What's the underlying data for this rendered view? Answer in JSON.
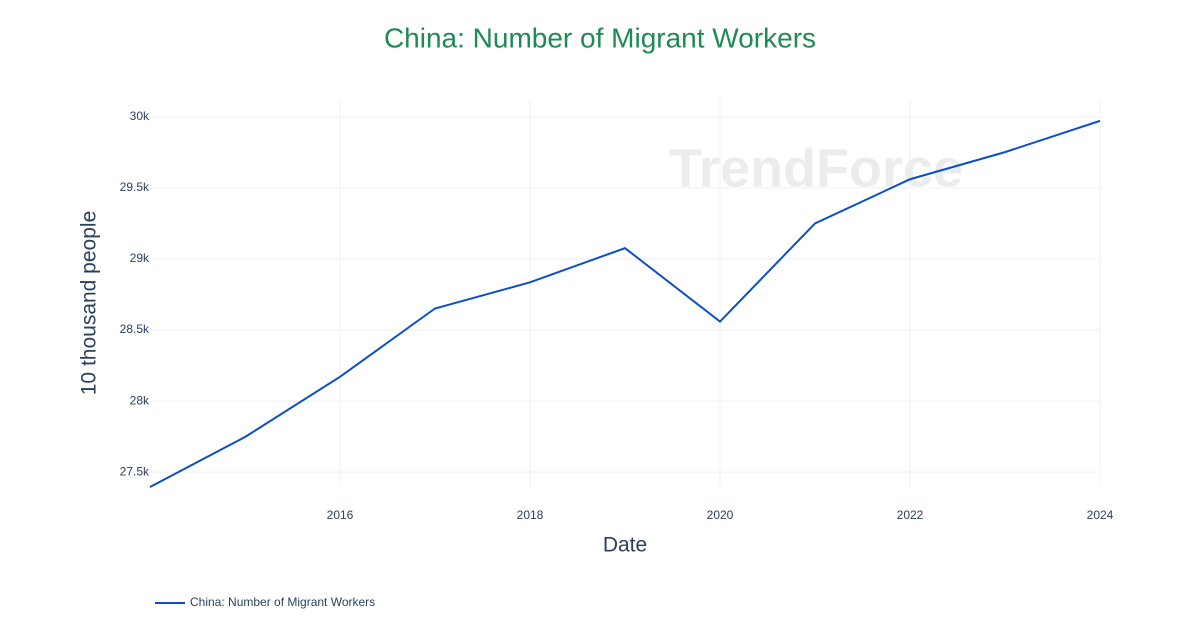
{
  "chart_data": {
    "type": "line",
    "title": "China: Number of Migrant Workers",
    "x_label": "Date",
    "y_label": "10 thousand people",
    "watermark": "TrendForce",
    "x": [
      2014,
      2015,
      2016,
      2017,
      2018,
      2019,
      2020,
      2021,
      2022,
      2023,
      2024
    ],
    "series": [
      {
        "name": "China: Number of Migrant Workers",
        "color": "#0b4fc7",
        "values": [
          27395,
          27747,
          28171,
          28652,
          28836,
          29077,
          28560,
          29251,
          29562,
          29753,
          29973
        ]
      }
    ],
    "xlim": [
      2014,
      2024
    ],
    "xticks": [
      2016,
      2018,
      2020,
      2022,
      2024
    ],
    "ylim": [
      27395,
      30120
    ],
    "yticks": [
      {
        "value": 27500,
        "label": "27.5k"
      },
      {
        "value": 28000,
        "label": "28k"
      },
      {
        "value": 28500,
        "label": "28.5k"
      },
      {
        "value": 29000,
        "label": "29k"
      },
      {
        "value": 29500,
        "label": "29.5k"
      },
      {
        "value": 30000,
        "label": "30k"
      }
    ],
    "grid": true,
    "legend": "bottom-left"
  }
}
